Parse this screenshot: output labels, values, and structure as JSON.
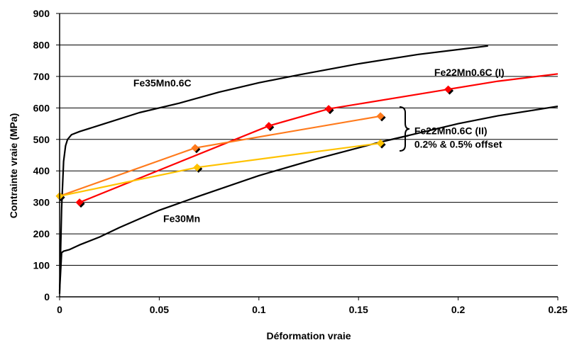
{
  "chart_data": {
    "type": "line",
    "xlabel": "Déformation vraie",
    "ylabel": "Contrainte vraie (MPa)",
    "xlim": [
      0,
      0.25
    ],
    "ylim": [
      0,
      900
    ],
    "xticks": [
      0,
      0.05,
      0.1,
      0.15,
      0.2,
      0.25
    ],
    "xtick_labels": [
      "0",
      "0.05",
      "0.1",
      "0.15",
      "0.2",
      "0.25"
    ],
    "yticks": [
      0,
      100,
      200,
      300,
      400,
      500,
      600,
      700,
      800,
      900
    ],
    "ytick_labels": [
      "0",
      "100",
      "200",
      "300",
      "400",
      "500",
      "600",
      "700",
      "800",
      "900"
    ],
    "grid": "horizontal",
    "series": [
      {
        "name": "Fe35Mn0.6C",
        "color": "#000000",
        "marker": "none",
        "x": [
          0,
          0.001,
          0.002,
          0.003,
          0.004,
          0.006,
          0.01,
          0.02,
          0.04,
          0.06,
          0.08,
          0.1,
          0.12,
          0.15,
          0.18,
          0.215
        ],
        "y": [
          10,
          280,
          430,
          480,
          500,
          515,
          525,
          545,
          585,
          615,
          650,
          680,
          705,
          740,
          770,
          797
        ]
      },
      {
        "name": "Fe30Mn",
        "color": "#000000",
        "marker": "none",
        "x": [
          0,
          0.001,
          0.002,
          0.005,
          0.01,
          0.02,
          0.03,
          0.05,
          0.07,
          0.1,
          0.13,
          0.16,
          0.175
        ],
        "y": [
          20,
          140,
          145,
          150,
          165,
          190,
          220,
          275,
          320,
          385,
          440,
          490,
          512
        ]
      },
      {
        "name": "",
        "color": "#000000",
        "marker": "none",
        "x": [
          0.16,
          0.18,
          0.2,
          0.22,
          0.25
        ],
        "y": [
          490,
          520,
          550,
          575,
          605
        ]
      },
      {
        "name": "Fe22Mn0.6C (I)",
        "color": "#ff0000",
        "marker": "diamond",
        "x": [
          0.01,
          0.105,
          0.135,
          0.195
        ],
        "y": [
          300,
          543,
          597,
          659
        ]
      },
      {
        "name": "",
        "color": "#ff0000",
        "marker": "none",
        "x": [
          0.195,
          0.22,
          0.25
        ],
        "y": [
          659,
          685,
          708
        ]
      },
      {
        "name": "",
        "color": "#ff7a1c",
        "marker": "diamond",
        "x": [
          0,
          0.068,
          0.161
        ],
        "y": [
          320,
          473,
          574
        ]
      },
      {
        "name": "",
        "color": "#ffc200",
        "marker": "diamond",
        "x": [
          0,
          0.069,
          0.161
        ],
        "y": [
          320,
          411,
          488
        ]
      }
    ],
    "annotations": [
      {
        "text": "Fe35Mn0.6C",
        "x": 0.037,
        "y": 668
      },
      {
        "text": "Fe22Mn0.6C (I)",
        "x": 0.188,
        "y": 702
      },
      {
        "text": "Fe30Mn",
        "x": 0.052,
        "y": 237
      },
      {
        "text": "Fe22Mn0.6C (II)",
        "x": 0.178,
        "y": 516
      },
      {
        "text": "0.2% & 0.5% offset",
        "x": 0.178,
        "y": 474
      }
    ]
  }
}
